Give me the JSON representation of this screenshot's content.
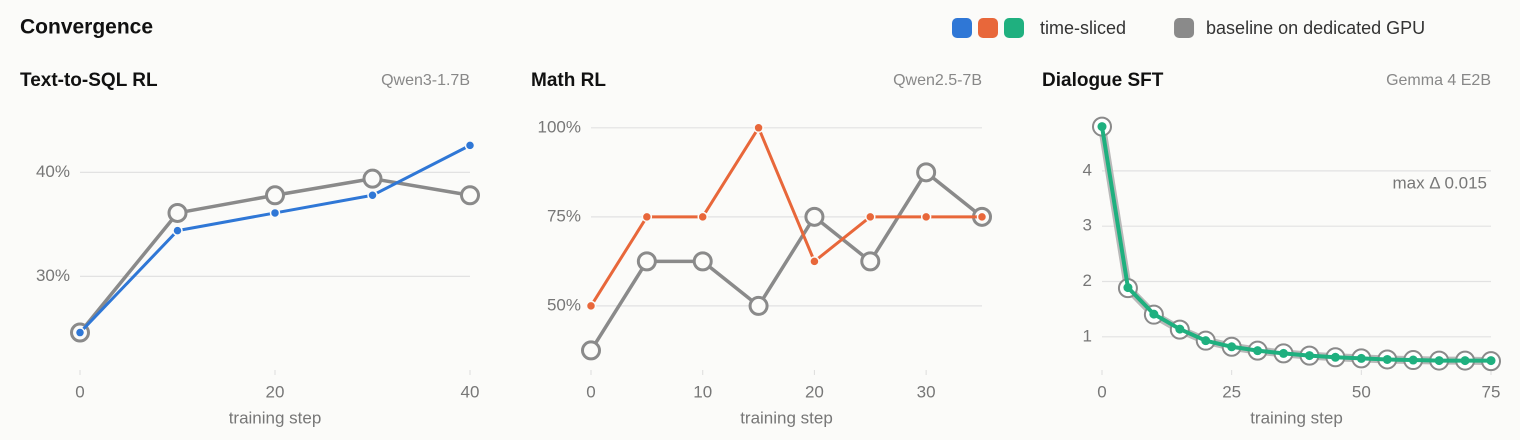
{
  "title": "Convergence",
  "chart_data": [
    {
      "type": "line",
      "title": "Text-to-SQL RL",
      "subtitle": "Qwen3-1.7B",
      "xlabel": "training step",
      "grid": true,
      "x": [
        0,
        10,
        20,
        30,
        40
      ],
      "xlim": [
        0,
        40
      ],
      "xticks": [
        0,
        20,
        40
      ],
      "ylim": [
        21,
        46
      ],
      "yticks": [
        {
          "value": 30,
          "label": "30%"
        },
        {
          "value": 40,
          "label": "40%"
        }
      ],
      "series": [
        {
          "name": "time-sliced",
          "color": "#2f77d6",
          "values": [
            24.6,
            34.4,
            36.1,
            37.8,
            42.6
          ]
        },
        {
          "name": "baseline on dedicated GPU",
          "color": "#8a8a8a",
          "values": [
            24.6,
            36.1,
            37.8,
            39.4,
            37.8
          ]
        }
      ]
    },
    {
      "type": "line",
      "title": "Math RL",
      "subtitle": "Qwen2.5-7B",
      "xlabel": "training step",
      "grid": true,
      "x": [
        0,
        5,
        10,
        15,
        20,
        25,
        30,
        35
      ],
      "xlim": [
        0,
        35
      ],
      "xticks": [
        0,
        10,
        20,
        30
      ],
      "ylim": [
        32,
        105
      ],
      "yticks": [
        {
          "value": 50,
          "label": "50%"
        },
        {
          "value": 75,
          "label": "75%"
        },
        {
          "value": 100,
          "label": "100%"
        }
      ],
      "series": [
        {
          "name": "time-sliced",
          "color": "#e8673a",
          "values": [
            50,
            75,
            75,
            100,
            62.5,
            75,
            75,
            75
          ]
        },
        {
          "name": "baseline on dedicated GPU",
          "color": "#8a8a8a",
          "values": [
            37.5,
            62.5,
            62.5,
            50,
            75,
            62.5,
            87.5,
            75
          ]
        }
      ]
    },
    {
      "type": "line",
      "title": "Dialogue SFT",
      "subtitle": "Gemma 4 E2B",
      "xlabel": "training step",
      "grid": true,
      "annotation": "max Δ 0.015",
      "x": [
        0,
        5,
        10,
        15,
        20,
        25,
        30,
        35,
        40,
        45,
        50,
        55,
        60,
        65,
        70,
        75
      ],
      "xlim": [
        0,
        75
      ],
      "xticks": [
        0,
        25,
        50,
        75
      ],
      "ylim": [
        0.4,
        5.1
      ],
      "yticks": [
        1,
        2,
        3,
        4
      ],
      "series": [
        {
          "name": "time-sliced",
          "color": "#1fb07f",
          "values": [
            4.8,
            1.89,
            1.41,
            1.14,
            0.93,
            0.82,
            0.75,
            0.7,
            0.66,
            0.63,
            0.61,
            0.59,
            0.58,
            0.57,
            0.57,
            0.57
          ]
        },
        {
          "name": "baseline on dedicated GPU",
          "color": "#8a8a8a",
          "values": [
            4.8,
            1.88,
            1.4,
            1.13,
            0.93,
            0.82,
            0.75,
            0.7,
            0.66,
            0.63,
            0.61,
            0.59,
            0.58,
            0.57,
            0.57,
            0.56
          ]
        }
      ]
    }
  ]
}
